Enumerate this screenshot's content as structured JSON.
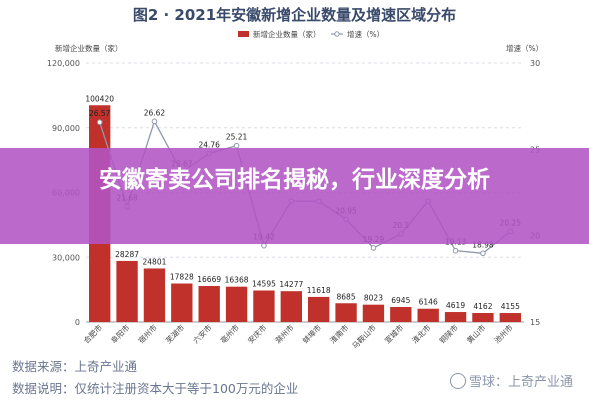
{
  "chart_data": {
    "type": "bar",
    "title": "图2 · 2021年安徽新增企业数量及增速区域分布",
    "legend": {
      "bar_label": "新增企业数量（家）",
      "line_label": "增速（%）",
      "placement": "top-center"
    },
    "left_axis_label": "新增企业数量（家）",
    "right_axis_label": "增速（%）",
    "left_ticks": [
      "0",
      "30,000",
      "60,000",
      "90,000",
      "120,000"
    ],
    "right_ticks": [
      "15",
      "20",
      "25",
      "30"
    ],
    "ylim": [
      0,
      120000
    ],
    "y2lim": [
      15,
      30
    ],
    "categories": [
      "合肥市",
      "阜阳市",
      "宿州市",
      "芜湖市",
      "六安市",
      "亳州市",
      "安庆市",
      "滁州市",
      "蚌埠市",
      "淮南市",
      "马鞍山市",
      "宣城市",
      "淮北市",
      "铜陵市",
      "黄山市",
      "池州市"
    ],
    "series": [
      {
        "name": "新增企业数量（家）",
        "kind": "bar",
        "color": "#c0312b",
        "values": [
          100420,
          28287,
          24801,
          17828,
          16669,
          16368,
          14595,
          14277,
          11618,
          8685,
          8023,
          6945,
          6146,
          4619,
          4162,
          4155
        ],
        "labels": [
          "100420",
          "28287",
          "24801",
          "17828",
          "16669",
          "16368",
          "14595",
          "14277",
          "11618",
          "8685",
          "8023",
          "6945",
          "6146",
          "4619",
          "4162",
          "4155"
        ]
      },
      {
        "name": "增速（%）",
        "kind": "line",
        "axis": "right",
        "color": "#8d97ad",
        "values": [
          26.57,
          21.68,
          26.62,
          23.67,
          24.76,
          25.21,
          19.42,
          22.0,
          22.0,
          20.95,
          19.29,
          20.1,
          22.0,
          19.13,
          18.98,
          20.25
        ],
        "labels": [
          "26.57",
          "21.68",
          "26.62",
          "23.67",
          "24.76",
          "25.21",
          "19.42",
          "",
          "",
          "20.95",
          "19.29",
          "20.1",
          "",
          "19.13",
          "18.98",
          "20.25"
        ]
      }
    ]
  },
  "banner": {
    "text": "安徽寄卖公司排名揭秘，行业深度分析",
    "color": "#b254c4"
  },
  "footer": {
    "source": "数据来源：上奇产业通",
    "note": "数据说明：仅统计注册资本大于等于100万元的企业",
    "watermark": "雪球：上奇产业通"
  }
}
